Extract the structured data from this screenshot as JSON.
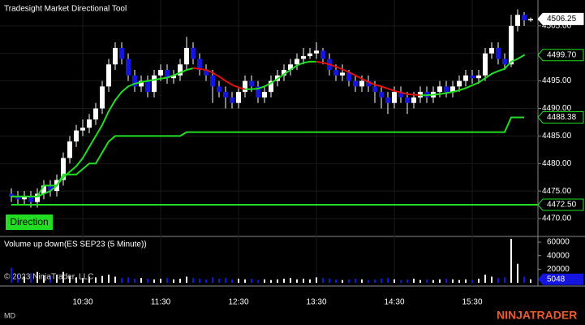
{
  "chart_data": {
    "type": "candlestick",
    "title": "Tradesight Market Directional Tool",
    "button": "Direction",
    "volume_title": "Volume up down(ES SEP23 (5 Minute))",
    "copyright": "© 2023 NinjaTrader, LLC",
    "footer": "MD",
    "logo": "NINJATRADER",
    "up_color": "#ffffff",
    "down_color": "#1515e0",
    "categories": [
      null,
      null,
      null,
      null,
      null,
      null,
      null,
      null,
      null,
      null,
      null,
      "10:30",
      null,
      null,
      null,
      null,
      null,
      null,
      null,
      null,
      null,
      null,
      null,
      "11:30",
      null,
      null,
      null,
      null,
      null,
      null,
      null,
      null,
      null,
      null,
      null,
      "12:30",
      null,
      null,
      null,
      null,
      null,
      null,
      null,
      null,
      null,
      null,
      null,
      "13:30",
      null,
      null,
      null,
      null,
      null,
      null,
      null,
      null,
      null,
      null,
      null,
      "14:30",
      null,
      null,
      null,
      null,
      null,
      null,
      null,
      null,
      null,
      null,
      null,
      "15:30",
      null,
      null,
      null,
      null,
      null,
      null,
      null,
      null,
      null
    ],
    "open": [
      4474.5,
      4474,
      4473.5,
      4474,
      4473,
      4474.5,
      4476,
      4475,
      4477,
      4481,
      4484,
      4486,
      4486.5,
      4488,
      4490,
      4494,
      4498,
      4501,
      4499,
      4496,
      4494,
      4495,
      4493,
      4496,
      4497,
      4495.5,
      4496,
      4498,
      4501,
      4499,
      4497,
      4496,
      4494,
      4493,
      4492,
      4491,
      4493,
      4495,
      4494,
      4492,
      4493,
      4495,
      4496,
      4497,
      4498,
      4499,
      4499.5,
      4500,
      4500.5,
      4499,
      4497,
      4496,
      4496.5,
      4495,
      4494,
      4495,
      4494,
      4493,
      4492,
      4491,
      4493,
      4492,
      4491,
      4492,
      4493,
      4492,
      4493,
      4494,
      4493,
      4494,
      4495,
      4496,
      4495.5,
      4496,
      4500,
      4501,
      4499,
      4498,
      4505,
      4507,
      4506
    ],
    "high": [
      4475.5,
      4475,
      4475,
      4475,
      4475.5,
      4477,
      4477,
      4478,
      4482,
      4485,
      4487,
      4488,
      4489,
      4491,
      4495,
      4499,
      4502,
      4502,
      4500,
      4497,
      4496,
      4496,
      4497,
      4498,
      4498,
      4497,
      4499,
      4503,
      4502,
      4500,
      4498,
      4497,
      4495,
      4494,
      4493,
      4494,
      4496,
      4496,
      4495,
      4494,
      4496,
      4497,
      4498,
      4499,
      4500,
      4501,
      4501,
      4502,
      4501,
      4500,
      4498,
      4498,
      4497,
      4496,
      4496,
      4496,
      4495,
      4494,
      4493,
      4494,
      4494,
      4493,
      4493,
      4494,
      4494,
      4494,
      4495,
      4495,
      4495,
      4496,
      4497,
      4497,
      4497,
      4501,
      4502,
      4502,
      4500,
      4507,
      4508,
      4507.5,
      4506.5
    ],
    "low": [
      4473,
      4472.5,
      4472.5,
      4472,
      4472,
      4473.5,
      4474,
      4474,
      4476,
      4480,
      4483,
      4485,
      4485.5,
      4487,
      4489,
      4493,
      4497,
      4498,
      4495,
      4493,
      4493,
      4492,
      4492,
      4495,
      4494.5,
      4494.5,
      4495,
      4497,
      4498,
      4496,
      4495,
      4491,
      4492,
      4490,
      4490,
      4490,
      4492,
      4493,
      4491,
      4491,
      4492,
      4494,
      4495,
      4496,
      4497,
      4498,
      4499,
      4499,
      4498,
      4496,
      4495,
      4495,
      4494,
      4493,
      4493,
      4493,
      4491,
      4490,
      4489,
      4490,
      4491,
      4489,
      4490,
      4491,
      4491,
      4491,
      4492,
      4492,
      4492,
      4493,
      4494,
      4494.5,
      4494.5,
      4495,
      4499,
      4498,
      4497,
      4497.5,
      4504,
      4505,
      4505.75
    ],
    "close": [
      4474,
      4473.5,
      4474,
      4473,
      4474.5,
      4476,
      4475,
      4477,
      4481,
      4484,
      4486,
      4486.5,
      4488,
      4490,
      4494,
      4498,
      4501,
      4499,
      4496,
      4494,
      4495,
      4493,
      4496,
      4497,
      4495.5,
      4496,
      4498,
      4501,
      4499,
      4497,
      4496,
      4494,
      4493,
      4492,
      4491,
      4493,
      4495,
      4494,
      4492,
      4493,
      4495,
      4496,
      4497,
      4498,
      4499,
      4499.5,
      4500,
      4500.5,
      4499,
      4497,
      4496,
      4496.5,
      4495,
      4494,
      4495,
      4494,
      4493,
      4492,
      4491,
      4493,
      4492,
      4491,
      4492,
      4493,
      4492,
      4493,
      4494,
      4493,
      4494,
      4495,
      4496,
      4495.5,
      4496,
      4500,
      4501,
      4499,
      4498,
      4505,
      4507,
      4506,
      4506.25
    ],
    "ma": {
      "up_color": "#22dd22",
      "down_color": "#e01010",
      "values": [
        4474,
        4474,
        4474,
        4474,
        4474,
        4474.5,
        4475,
        4476,
        4477.5,
        4478.5,
        4479.5,
        4481,
        4483,
        4485,
        4487,
        4489.5,
        4491.5,
        4493,
        4494,
        4494.5,
        4494.8,
        4495,
        4495.2,
        4495.4,
        4495.6,
        4496,
        4496.5,
        4497,
        4497.3,
        4497.2,
        4497,
        4496.5,
        4495.8,
        4495,
        4494.3,
        4493.8,
        4493.5,
        4493.5,
        4493.6,
        4494,
        4494.6,
        4495.4,
        4496.2,
        4497,
        4497.8,
        4498.3,
        4498.5,
        4498.5,
        4498.3,
        4498,
        4497.6,
        4497.1,
        4496.6,
        4496,
        4495.4,
        4494.8,
        4494.3,
        4494,
        4493.6,
        4493.2,
        4492.9,
        4492.6,
        4492.5,
        4492.4,
        4492.4,
        4492.5,
        4492.6,
        4492.8,
        4493,
        4493.3,
        4493.7,
        4494.2,
        4494.7,
        4495.5,
        4496.3,
        4496.8,
        4497.2,
        4498.5,
        4499,
        4499.7,
        null
      ]
    },
    "channel": {
      "color": "#22dd22",
      "values": [
        4474,
        4474,
        4474,
        4474,
        4474,
        4476,
        4476,
        4476,
        4478,
        4478,
        4478,
        4479,
        4480,
        4480,
        4482,
        4484,
        4485,
        4485,
        4485,
        4485,
        4485,
        4485,
        4485,
        4485,
        4485,
        4485,
        4485,
        4485.7,
        4485.7,
        4485.7,
        4485.7,
        4485.7,
        4485.7,
        4485.7,
        4485.7,
        4485.7,
        4485.7,
        4485.7,
        4485.7,
        4485.7,
        4485.7,
        4485.7,
        4485.7,
        4485.7,
        4485.7,
        4485.7,
        4485.7,
        4485.7,
        4485.7,
        4485.7,
        4485.7,
        4485.7,
        4485.7,
        4485.7,
        4485.7,
        4485.7,
        4485.7,
        4485.7,
        4485.7,
        4485.7,
        4485.7,
        4485.7,
        4485.7,
        4485.7,
        4485.7,
        4485.7,
        4485.7,
        4485.7,
        4485.7,
        4485.7,
        4485.7,
        4485.7,
        4485.7,
        4485.7,
        4485.7,
        4485.7,
        4485.7,
        4488.38,
        4488.38,
        4488.38,
        null
      ]
    },
    "ylim": [
      4466.9,
      4509.7
    ],
    "yticks": [
      {
        "value": 4470,
        "label": "4470.00"
      },
      {
        "value": 4475,
        "label": "4475.00"
      },
      {
        "value": 4480,
        "label": "4480.00"
      },
      {
        "value": 4485,
        "label": "4485.00"
      },
      {
        "value": 4490,
        "label": "4490.00"
      },
      {
        "value": 4495,
        "label": "4495.00"
      },
      {
        "value": 4500,
        "label": "4500.00"
      },
      {
        "value": 4505,
        "label": "4505.00"
      }
    ],
    "price_markers": [
      {
        "value": 4506.25,
        "label": "4506.25",
        "color": "#ffffff"
      },
      {
        "value": 4499.7,
        "label": "4499.70",
        "color": "#22dd22"
      },
      {
        "value": 4488.38,
        "label": "4488.38",
        "color": "#22dd22"
      },
      {
        "value": 4472.5,
        "label": "4472.50",
        "color": "#22dd22",
        "line": true
      }
    ],
    "volume": [
      22000,
      12000,
      9000,
      14000,
      16000,
      11000,
      10000,
      12000,
      16000,
      10000,
      8000,
      7000,
      9000,
      8000,
      10000,
      12000,
      9000,
      7000,
      8000,
      6000,
      7000,
      6000,
      5000,
      6000,
      7000,
      5000,
      6000,
      9000,
      7000,
      6000,
      5000,
      8000,
      6000,
      7000,
      5000,
      6000,
      5000,
      6000,
      4000,
      5000,
      4000,
      5000,
      6000,
      7000,
      5000,
      6000,
      5000,
      8000,
      7000,
      6000,
      5000,
      4000,
      5000,
      6000,
      5000,
      4000,
      5000,
      6000,
      7000,
      5000,
      4000,
      5000,
      6000,
      4000,
      5000,
      4000,
      5000,
      6000,
      5000,
      4000,
      5000,
      4000,
      6000,
      12000,
      9000,
      7000,
      8000,
      65000,
      28000,
      9000,
      5048
    ],
    "vlim": [
      0,
      67300
    ],
    "vticks": [
      20000,
      40000,
      60000
    ],
    "volume_marker": {
      "value": 5048,
      "label": "5048",
      "color": "#1515e0"
    }
  }
}
